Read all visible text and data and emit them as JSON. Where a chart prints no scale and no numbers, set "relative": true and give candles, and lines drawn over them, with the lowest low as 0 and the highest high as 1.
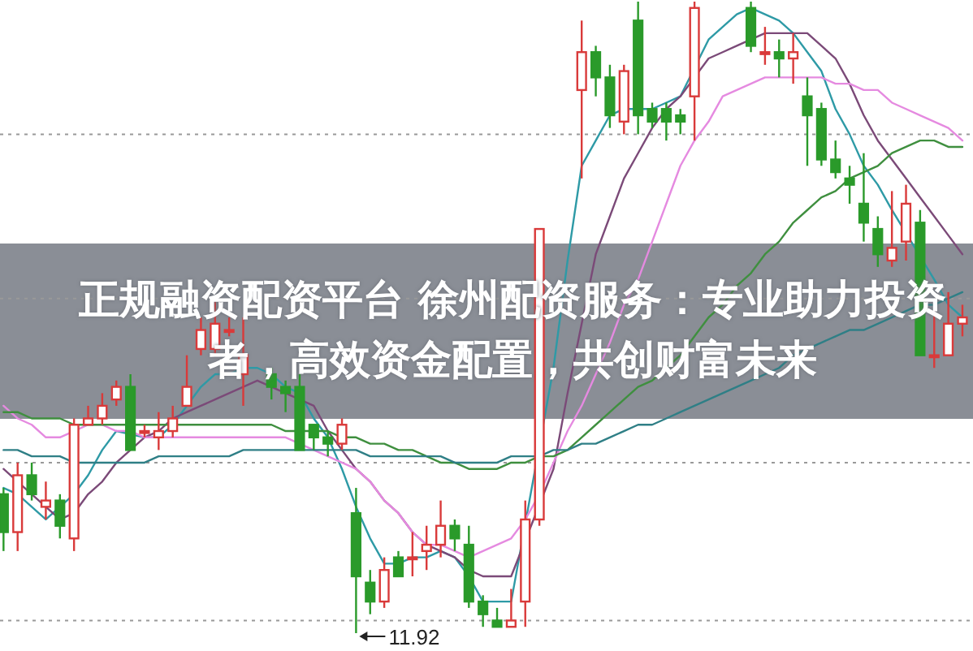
{
  "chart_data": {
    "type": "candlestick",
    "title": "正规融资配资平台 徐州配资服务：专业助力投资者，高效资金配置，共创财富未来",
    "relative": true,
    "categories": [
      null,
      null,
      null,
      null,
      null,
      null,
      null,
      null,
      null,
      null,
      null,
      null,
      null,
      null,
      null,
      null,
      null,
      null,
      null,
      null,
      null,
      null,
      null,
      null,
      null,
      null,
      null,
      null,
      null,
      null,
      null,
      null,
      null,
      null,
      null,
      null,
      null,
      null,
      null,
      null,
      null,
      null,
      null,
      null,
      null,
      null,
      null,
      null,
      null,
      null,
      null,
      null,
      null,
      null,
      null,
      null,
      null,
      null,
      null,
      null,
      null,
      null,
      null,
      null,
      null,
      null,
      null,
      null,
      null
    ],
    "ohlc": [
      [
        0.22,
        0.23,
        0.13,
        0.16
      ],
      [
        0.16,
        0.27,
        0.13,
        0.25
      ],
      [
        0.25,
        0.27,
        0.21,
        0.22
      ],
      [
        0.2,
        0.24,
        0.18,
        0.21
      ],
      [
        0.21,
        0.22,
        0.15,
        0.17
      ],
      [
        0.15,
        0.34,
        0.13,
        0.33
      ],
      [
        0.33,
        0.36,
        0.33,
        0.34
      ],
      [
        0.34,
        0.38,
        0.33,
        0.36
      ],
      [
        0.37,
        0.4,
        0.36,
        0.39
      ],
      [
        0.39,
        0.41,
        0.29,
        0.29
      ],
      [
        0.32,
        0.33,
        0.31,
        0.32
      ],
      [
        0.31,
        0.35,
        0.29,
        0.32
      ],
      [
        0.32,
        0.36,
        0.31,
        0.34
      ],
      [
        0.36,
        0.44,
        0.36,
        0.39
      ],
      [
        0.45,
        0.5,
        0.44,
        0.48
      ],
      [
        0.45,
        0.53,
        0.44,
        0.49
      ],
      [
        0.48,
        0.5,
        0.47,
        0.48
      ],
      [
        0.41,
        0.5,
        0.36,
        0.44
      ],
      null,
      [
        0.41,
        0.42,
        0.37,
        0.39
      ],
      [
        0.39,
        0.4,
        0.35,
        0.38
      ],
      [
        0.39,
        0.41,
        0.29,
        0.29
      ],
      [
        0.33,
        0.33,
        0.29,
        0.31
      ],
      [
        0.31,
        0.32,
        0.28,
        0.3
      ],
      [
        0.3,
        0.34,
        0.29,
        0.33
      ],
      [
        0.19,
        0.23,
        0,
        0.09
      ],
      [
        0.08,
        0.1,
        0.03,
        0.05
      ],
      [
        0.05,
        0.12,
        0.04,
        0.1
      ],
      [
        0.12,
        0.13,
        0.09,
        0.09
      ],
      [
        0.12,
        0.16,
        0.09,
        0.12
      ],
      [
        0.13,
        0.17,
        0.1,
        0.14
      ],
      [
        0.14,
        0.21,
        0.12,
        0.17
      ],
      [
        0.17,
        0.18,
        0.13,
        0.15
      ],
      [
        0.14,
        0.17,
        0.04,
        0.05
      ],
      [
        0.05,
        0.06,
        0.01,
        0.03
      ],
      [
        0.02,
        0.04,
        0.01,
        0.01
      ],
      [
        0.01,
        0.07,
        0.01,
        0.02
      ],
      [
        0.05,
        0.21,
        0.01,
        0.18
      ],
      [
        0.18,
        0.64,
        0.17,
        0.64
      ],
      null,
      null,
      [
        0.86,
        0.97,
        0.72,
        0.92
      ],
      [
        0.92,
        0.93,
        0.85,
        0.88
      ],
      [
        0.88,
        0.9,
        0.8,
        0.82
      ],
      [
        0.81,
        0.9,
        0.79,
        0.89
      ],
      [
        0.97,
        1,
        0.79,
        0.82
      ],
      [
        0.83,
        0.84,
        0.8,
        0.81
      ],
      [
        0.83,
        0.84,
        0.78,
        0.81
      ],
      [
        0.82,
        0.83,
        0.79,
        0.81
      ],
      [
        0.85,
        1,
        0.78,
        0.99
      ],
      null,
      null,
      null,
      [
        0.99,
        1,
        0.92,
        0.93
      ],
      [
        0.92,
        0.96,
        0.9,
        0.92
      ],
      [
        0.92,
        0.94,
        0.88,
        0.91
      ],
      [
        0.91,
        0.95,
        0.87,
        0.92
      ],
      [
        0.85,
        0.88,
        0.74,
        0.82
      ],
      [
        0.83,
        0.84,
        0.74,
        0.75
      ],
      [
        0.75,
        0.78,
        0.72,
        0.73
      ],
      [
        0.72,
        0.74,
        0.68,
        0.71
      ],
      [
        0.68,
        0.76,
        0.62,
        0.65
      ],
      [
        0.64,
        0.66,
        0.58,
        0.6
      ],
      [
        0.59,
        0.7,
        0.58,
        0.61
      ],
      [
        0.62,
        0.71,
        0.59,
        0.68
      ],
      [
        0.65,
        0.67,
        0.44,
        0.44
      ],
      [
        0.44,
        0.51,
        0.42,
        0.44
      ],
      [
        0.44,
        0.54,
        0.44,
        0.49
      ],
      [
        0.49,
        0.52,
        0.47,
        0.5
      ]
    ],
    "series": [
      {
        "type": "line",
        "color": "#2e9aa6",
        "values": [
          0.23,
          0.22,
          0.2,
          0.18,
          0.2,
          0.22,
          0.25,
          0.29,
          0.32,
          null,
          0.31,
          0.31,
          0.33,
          0.36,
          0.39,
          0.41,
          0.41,
          0.42,
          0.42,
          0.41,
          0.39,
          0.38,
          0.34,
          0.31,
          0.26,
          0.2,
          0.15,
          0.11,
          0.11,
          0.12,
          0.12,
          0.13,
          0.12,
          0.09,
          0.05,
          0.05,
          0.05,
          null,
          null,
          0.42,
          0.59,
          0.74,
          0.78,
          0.82,
          0.83,
          0.83,
          0.83,
          0.84,
          0.85,
          null,
          0.94,
          0.96,
          0.98,
          0.99,
          0.98,
          0.97,
          0.95,
          0.92,
          0.89,
          0.83,
          0.79,
          0.74,
          0.71,
          0.67,
          null,
          null,
          0.56,
          0.52,
          0.5
        ]
      },
      {
        "type": "line",
        "color": "#7b4a78",
        "values": [
          0.26,
          0.24,
          0.22,
          0.2,
          0.18,
          0.19,
          0.22,
          0.24,
          0.27,
          0.29,
          0.31,
          0.32,
          0.34,
          0.35,
          0.36,
          0.37,
          0.38,
          0.39,
          0.4,
          0.39,
          0.38,
          0.37,
          0.36,
          0.32,
          0.29,
          0.26,
          0.24,
          0.21,
          0.19,
          0.16,
          0.14,
          0.13,
          0.12,
          0.1,
          0.09,
          0.09,
          0.09,
          null,
          null,
          0.26,
          0.38,
          0.49,
          0.6,
          0.66,
          0.72,
          0.76,
          0.8,
          0.83,
          0.85,
          0.88,
          0.91,
          0.92,
          0.93,
          0.94,
          0.95,
          0.95,
          0.95,
          0.95,
          0.93,
          0.91,
          0.87,
          0.82,
          0.78,
          0.75,
          0.72,
          0.69,
          0.66,
          0.63,
          0.6
        ]
      },
      {
        "type": "line",
        "color": "#e58ae0",
        "values": [
          0.36,
          0.34,
          0.33,
          0.31,
          0.31,
          0.32,
          0.33,
          0.33,
          0.32,
          0.32,
          0.31,
          0.31,
          0.31,
          0.31,
          0.31,
          0.31,
          0.31,
          0.31,
          0.31,
          0.31,
          0.31,
          0.3,
          0.29,
          0.28,
          0.27,
          0.26,
          0.24,
          0.21,
          0.19,
          0.16,
          0.14,
          0.14,
          0.13,
          0.12,
          0.13,
          0.14,
          0.15,
          0.18,
          0.22,
          0.27,
          0.32,
          0.36,
          0.41,
          0.46,
          0.52,
          0.56,
          0.62,
          0.68,
          0.74,
          0.78,
          0.81,
          0.85,
          0.86,
          0.87,
          0.88,
          0.88,
          0.88,
          0.88,
          0.88,
          0.87,
          0.87,
          0.86,
          0.86,
          0.84,
          0.83,
          0.82,
          0.81,
          0.8,
          0.78
        ]
      },
      {
        "type": "line",
        "color": "#3f8f3f",
        "values": [
          0.35,
          0.35,
          0.34,
          0.34,
          0.34,
          0.33,
          0.33,
          0.33,
          0.33,
          0.33,
          0.33,
          0.33,
          0.33,
          0.33,
          0.33,
          0.33,
          0.33,
          0.33,
          0.33,
          0.33,
          0.32,
          0.32,
          0.32,
          0.32,
          0.31,
          0.31,
          0.3,
          0.3,
          0.29,
          0.29,
          0.28,
          0.27,
          0.27,
          0.26,
          0.26,
          0.26,
          0.27,
          0.27,
          0.28,
          0.28,
          0.29,
          0.31,
          0.33,
          0.35,
          0.37,
          0.39,
          0.4,
          0.42,
          0.44,
          0.47,
          0.5,
          0.52,
          0.55,
          0.57,
          0.6,
          0.62,
          0.65,
          0.67,
          0.69,
          0.7,
          0.72,
          0.73,
          0.74,
          0.76,
          0.77,
          0.78,
          0.78,
          0.77,
          0.77
        ]
      },
      {
        "type": "line",
        "color": "#2f7f86",
        "values": [
          0.29,
          0.29,
          0.28,
          0.28,
          0.28,
          0.27,
          0.27,
          0.27,
          0.27,
          0.27,
          0.27,
          0.28,
          0.28,
          0.28,
          0.28,
          0.28,
          0.28,
          0.29,
          0.29,
          0.29,
          0.29,
          0.29,
          0.29,
          0.29,
          0.29,
          0.29,
          0.28,
          0.28,
          0.28,
          0.28,
          0.28,
          0.28,
          0.27,
          0.27,
          0.27,
          0.27,
          0.28,
          0.28,
          0.28,
          0.29,
          0.29,
          0.3,
          0.3,
          0.31,
          0.32,
          0.33,
          0.33,
          0.34,
          0.35,
          0.36,
          0.37,
          0.38,
          0.39,
          0.4,
          0.41,
          0.42,
          0.44,
          0.45,
          0.46,
          0.47,
          0.48,
          0.48,
          0.49,
          0.5,
          0.51,
          0.52,
          0.52,
          0.53,
          0.54
        ]
      }
    ],
    "ref_lines": [
      {
        "axis": "y",
        "value": 0.79,
        "color": "#999999",
        "line_style": "dotted"
      },
      {
        "axis": "y",
        "value": 0.53,
        "color": "#999999",
        "line_style": "dotted"
      },
      {
        "axis": "y",
        "value": 0.27,
        "color": "#999999",
        "line_style": "dotted"
      },
      {
        "axis": "y",
        "value": 0.02,
        "color": "#999999",
        "line_style": "dotted"
      }
    ],
    "annotations": [
      "11.92"
    ]
  }
}
